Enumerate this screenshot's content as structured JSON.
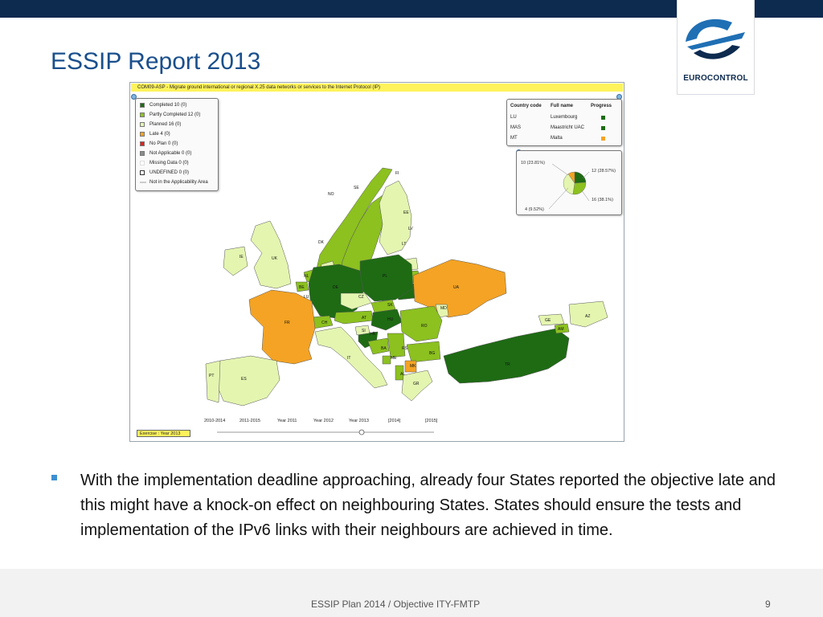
{
  "header": {
    "title": "ESSIP Report 2013",
    "logo_text": "EUROCONTROL"
  },
  "map": {
    "heading": "COM09-ASP - Migrate ground international or regional X.25 data networks or services to the Internet Protocol (IP)",
    "legend": [
      {
        "label": "Completed  10 (0)",
        "color": "#1e6b14"
      },
      {
        "label": "Partly Completed  12 (0)",
        "color": "#8cc11f"
      },
      {
        "label": "Planned  16 (0)",
        "color": "#e4f5b0"
      },
      {
        "label": "Late  4 (0)",
        "color": "#f4a324"
      },
      {
        "label": "No Plan  0 (0)",
        "color": "#e32219"
      },
      {
        "label": "Not Applicable  0 (0)",
        "color": "#8c8c8c"
      },
      {
        "label": "Missing Data  0 (0)",
        "color": "#ffffff"
      },
      {
        "label": "UNDEFINED  0 (0)",
        "color": "#ffffff"
      },
      {
        "label": "Not in the Applicability Area",
        "color": "#cccccc"
      }
    ],
    "table": {
      "headers": [
        "Country code",
        "Full name",
        "Progress"
      ],
      "rows": [
        {
          "code": "LU",
          "name": "Luxembourg",
          "color": "#1e6b14"
        },
        {
          "code": "MAS",
          "name": "Maastricht UAC",
          "color": "#1e6b14"
        },
        {
          "code": "MT",
          "name": "Malta",
          "color": "#f4a324"
        }
      ]
    },
    "pie": {
      "labels": [
        "10 (23.81%)",
        "12 (28.57%)",
        "16 (38.1%)",
        "4 (9.52%)"
      ],
      "values": [
        10,
        12,
        16,
        4
      ],
      "colors": [
        "#1e6b14",
        "#8cc11f",
        "#e4f5b0",
        "#f4a324"
      ]
    },
    "countries": {
      "fi": "FI",
      "se": "SE",
      "no": "NO",
      "ee": "EE",
      "lv": "LV",
      "lt": "LT",
      "dk": "DK",
      "ie": "IE",
      "uk": "UK",
      "nl": "NL",
      "be": "BE",
      "lu": "LU",
      "de": "DE",
      "pl": "PL",
      "cz": "CZ",
      "sk": "SK",
      "at": "AT",
      "hu": "HU",
      "ch": "CH",
      "fr": "FR",
      "ua": "UA",
      "md": "MD",
      "ro": "RO",
      "si": "SI",
      "hr": "HR",
      "ba": "BA",
      "rs": "RS",
      "bg": "BG",
      "me": "ME",
      "mk": "MK",
      "al": "AL",
      "gr": "GR",
      "it": "IT",
      "es": "ES",
      "pt": "PT",
      "tr": "TR",
      "ge": "GE",
      "am": "AM",
      "az": "AZ"
    },
    "timeline": [
      "2010-2014",
      "2011-2015",
      "Year 2011",
      "Year 2012",
      "Year 2013",
      "[2014]",
      "[2015]"
    ],
    "exercise": "Exercise : Year 2013"
  },
  "bullet": "With the implementation deadline approaching, already four States reported the objective late and this might have a knock-on effect on neighbouring States. States should ensure the tests and implementation of the IPv6 links with their neighbours are achieved in time.",
  "footer": {
    "text": "ESSIP Plan 2014 / Objective ITY-FMTP",
    "page": "9"
  }
}
